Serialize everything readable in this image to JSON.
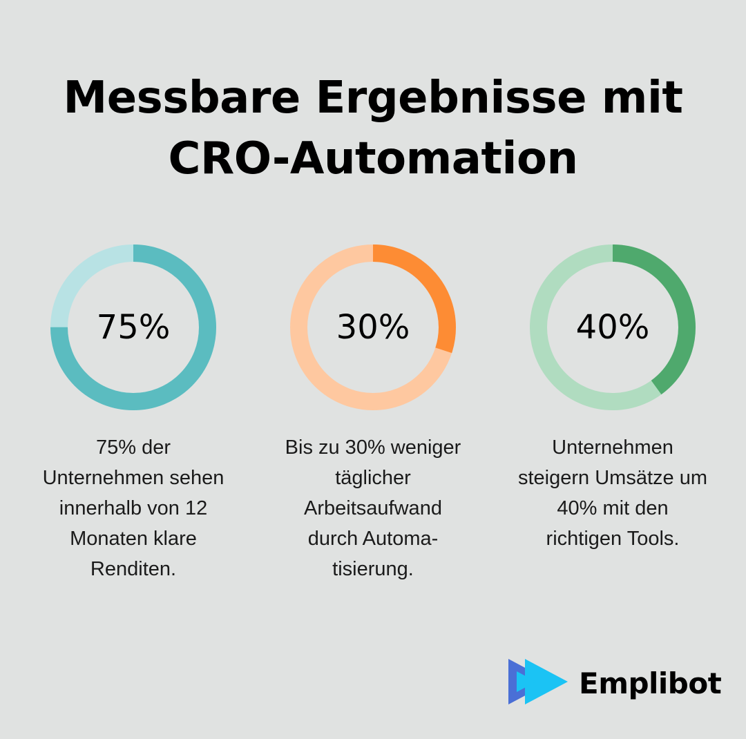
{
  "title": {
    "line1": "Messbare Ergebnisse mit",
    "line2": "CRO-Automation"
  },
  "stats": [
    {
      "value_label": "75%",
      "value": 75,
      "color": "#5bbcc0",
      "track_color": "#b8e2e4",
      "description_lines": [
        "75% der",
        "Unternehmen sehen",
        "innerhalb von 12",
        "Monaten klare",
        "Renditen."
      ]
    },
    {
      "value_label": "30%",
      "value": 30,
      "color": "#fd8c34",
      "track_color": "#fec8a0",
      "description_lines": [
        "Bis zu 30% weniger",
        "täglicher",
        "Arbeitsaufwand",
        "durch Automa-",
        "tisierung."
      ]
    },
    {
      "value_label": "40%",
      "value": 40,
      "color": "#4fa96d",
      "track_color": "#b0dcc0",
      "description_lines": [
        "Unternehmen",
        "steigern Umsätze um",
        "40% mit den",
        "richtigen Tools."
      ]
    }
  ],
  "logo": {
    "text": "Emplibot",
    "icon": "double-play-arrow-icon",
    "colors": [
      "#4a6fd6",
      "#1bc3f4"
    ]
  },
  "chart_data": {
    "type": "pie",
    "title": "Messbare Ergebnisse mit CRO-Automation",
    "subtype": "donut",
    "series": [
      {
        "name": "75% der Unternehmen sehen innerhalb von 12 Monaten klare Renditen.",
        "value": 75
      },
      {
        "name": "Bis zu 30% weniger täglicher Arbeitsaufwand durch Automatisierung.",
        "value": 30
      },
      {
        "name": "Unternehmen steigern Umsätze um 40% mit den richtigen Tools.",
        "value": 40
      }
    ],
    "unit": "%",
    "max": 100
  }
}
